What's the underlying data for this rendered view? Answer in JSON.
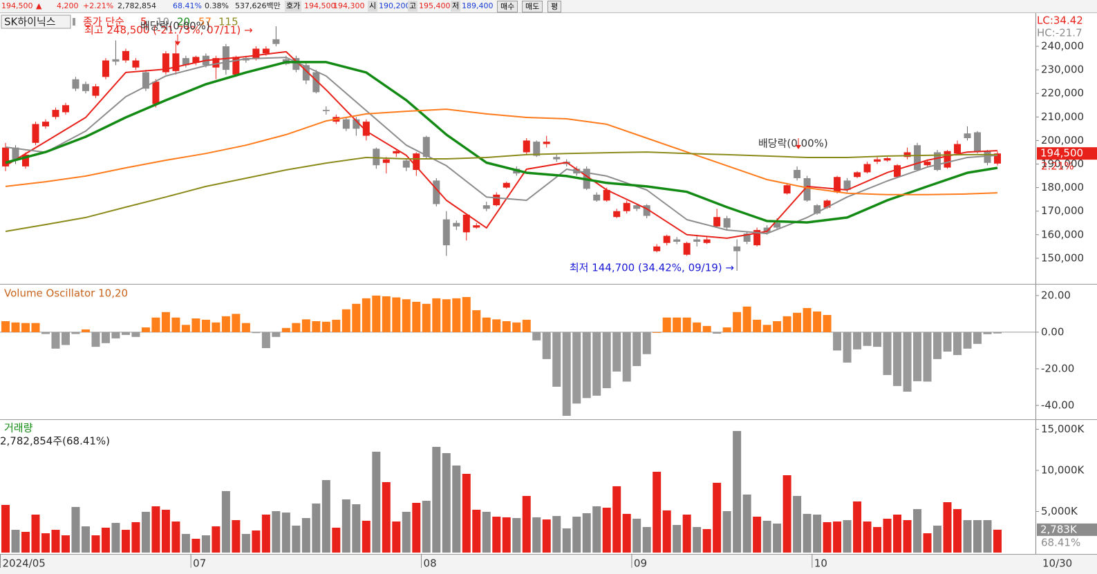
{
  "header": {
    "price": "194,500",
    "arrow": "▲",
    "change": "4,200",
    "change_pct": "+2.21%",
    "volume": "2,782,854",
    "volume_pct": "68.41%",
    "turnover": "0.38%",
    "amount": "537,626백만",
    "quote_label": "호가",
    "ask": "194,500",
    "bid": "194,300",
    "open_label": "시",
    "open": "190,200",
    "high_label": "고",
    "high": "195,400",
    "low_label": "저",
    "low": "189,400",
    "buttons": [
      "매수",
      "매도",
      "평"
    ]
  },
  "chart_data": [
    {
      "type": "candlestick",
      "title": "SK하이닉스",
      "subtitle": "종가 단순",
      "categories": [
        "2024/05",
        null,
        null,
        null,
        null,
        null,
        null,
        null,
        null,
        null,
        null,
        null,
        null,
        null,
        null,
        null,
        null,
        null,
        null,
        "07",
        null,
        null,
        null,
        null,
        null,
        null,
        null,
        null,
        null,
        null,
        null,
        null,
        null,
        null,
        null,
        null,
        null,
        null,
        null,
        null,
        null,
        null,
        "08",
        null,
        null,
        null,
        null,
        null,
        null,
        null,
        null,
        null,
        null,
        null,
        null,
        null,
        null,
        null,
        null,
        null,
        null,
        null,
        null,
        "09",
        null,
        null,
        null,
        null,
        null,
        null,
        null,
        null,
        null,
        null,
        null,
        null,
        null,
        null,
        null,
        null,
        null,
        "10",
        null,
        null,
        null,
        null,
        null,
        null,
        null,
        null,
        null,
        null,
        null,
        null,
        null,
        null,
        null,
        null,
        null,
        "10/30"
      ],
      "open": [
        189000,
        197000,
        189000,
        199000,
        206000,
        210000,
        212000,
        226000,
        224000,
        219000,
        227000,
        234500,
        234000,
        231000,
        229000,
        215500,
        229000,
        229500,
        235000,
        233000,
        236000,
        231000,
        240000,
        228000,
        235000,
        235000,
        237000,
        243000,
        234500,
        235000,
        232000,
        229000,
        213000,
        208000,
        209000,
        209000,
        202000,
        196500,
        190500,
        194500,
        191500,
        187500,
        201500,
        183000,
        166500,
        165000,
        161000,
        163000,
        172500,
        172500,
        180000,
        188000,
        195000,
        199500,
        198500,
        193000,
        191000,
        188000,
        188000,
        177000,
        174500,
        167500,
        170000,
        172500,
        172500,
        153000,
        156500,
        158000,
        151500,
        158000,
        156500,
        163500,
        167000,
        155000,
        160500,
        155500,
        163000,
        165000,
        177500,
        187500,
        184000,
        172500,
        171500,
        178000,
        183000,
        184500,
        186500,
        191000,
        191500,
        184500,
        193000,
        198000,
        189500,
        195000,
        188500,
        194500,
        203000,
        203500,
        195500,
        190200
      ],
      "high": [
        199000,
        198000,
        195000,
        208000,
        209000,
        214000,
        216000,
        227000,
        225000,
        224000,
        235000,
        242500,
        239000,
        235000,
        230000,
        226000,
        238000,
        242500,
        236000,
        236000,
        237000,
        236000,
        241000,
        236000,
        236000,
        240000,
        240000,
        248500,
        236000,
        236000,
        233000,
        230000,
        214500,
        211000,
        210000,
        210000,
        209000,
        197000,
        193000,
        196000,
        192000,
        195000,
        202000,
        184000,
        170000,
        166000,
        169000,
        165000,
        174000,
        178000,
        182500,
        189000,
        201000,
        200000,
        202000,
        194000,
        192000,
        189000,
        189000,
        178000,
        180000,
        171000,
        174500,
        173000,
        173000,
        156000,
        160000,
        159000,
        157000,
        160000,
        159000,
        171000,
        168000,
        158000,
        161000,
        163000,
        164000,
        167000,
        182000,
        189000,
        185000,
        173000,
        175000,
        185000,
        184000,
        187000,
        191000,
        193000,
        193000,
        190000,
        197000,
        199000,
        192000,
        196000,
        196000,
        200000,
        206000,
        204000,
        196000,
        195400
      ],
      "low": [
        187000,
        190000,
        188000,
        198000,
        205000,
        209000,
        211000,
        221000,
        220000,
        218000,
        226000,
        232000,
        233000,
        230000,
        221000,
        214000,
        228000,
        228000,
        231000,
        232000,
        231000,
        226000,
        228000,
        227000,
        233000,
        234000,
        236000,
        240000,
        232000,
        229000,
        224000,
        220000,
        211000,
        207000,
        204000,
        202000,
        200000,
        188000,
        186000,
        193000,
        187000,
        185000,
        192000,
        172000,
        151000,
        162000,
        157500,
        162500,
        170000,
        172000,
        179500,
        185000,
        194000,
        193000,
        197000,
        191000,
        189000,
        185000,
        179000,
        174000,
        174000,
        167000,
        169000,
        170000,
        167000,
        152500,
        155500,
        156000,
        151000,
        155000,
        156000,
        163000,
        162000,
        144700,
        156000,
        155000,
        160000,
        162000,
        177000,
        183000,
        174000,
        168500,
        171000,
        177500,
        178000,
        184000,
        186000,
        190000,
        191000,
        184000,
        192000,
        187000,
        189000,
        187000,
        188000,
        194000,
        200000,
        194500,
        189500,
        189400
      ],
      "close": [
        197000,
        192000,
        194000,
        207000,
        208000,
        213000,
        215000,
        222000,
        221000,
        223000,
        234000,
        233500,
        238000,
        234000,
        222000,
        225000,
        237000,
        237000,
        232000,
        235500,
        232000,
        235000,
        230000,
        235500,
        234000,
        239000,
        239000,
        241000,
        232500,
        230000,
        225500,
        220500,
        212500,
        210000,
        205000,
        205000,
        208000,
        189500,
        192000,
        195500,
        188500,
        194500,
        193000,
        173000,
        155500,
        163500,
        168500,
        164000,
        171000,
        177000,
        182000,
        186000,
        200000,
        193500,
        199500,
        192000,
        190000,
        186000,
        179500,
        174500,
        179000,
        170000,
        173500,
        171000,
        168000,
        155000,
        159500,
        157000,
        156500,
        157000,
        158000,
        167500,
        163000,
        153000,
        157000,
        162000,
        161000,
        163000,
        181000,
        184000,
        174500,
        169000,
        174500,
        184500,
        179000,
        186500,
        190000,
        192000,
        192500,
        189500,
        195000,
        187500,
        191000,
        187500,
        195500,
        198500,
        201000,
        195000,
        190500,
        194500
      ],
      "up_color": "#e8221a",
      "down_color": "#8c8c8c",
      "x": [
        0,
        4,
        8,
        12,
        16,
        20,
        24,
        28,
        32,
        36,
        40,
        44,
        48,
        52,
        56,
        60,
        64,
        68,
        72,
        76,
        80,
        84,
        88,
        92,
        96,
        99
      ],
      "series": [
        {
          "name": "5",
          "color": "#e8221a",
          "values": [
            189300,
            199500,
            209800,
            228900,
            230300,
            234000,
            235600,
            237700,
            221500,
            204000,
            193700,
            174600,
            162900,
            187800,
            190700,
            179000,
            171000,
            160000,
            158500,
            161400,
            180500,
            179000,
            186400,
            191600,
            195100,
            195700
          ]
        },
        {
          "name": "10",
          "color": "#8c8c8c",
          "values": [
            197200,
            195000,
            204000,
            218600,
            227400,
            231800,
            234700,
            235300,
            227400,
            212700,
            198000,
            189300,
            176000,
            174600,
            187800,
            184900,
            179000,
            166400,
            162000,
            160500,
            167300,
            176000,
            182800,
            188700,
            192800,
            193700
          ]
        },
        {
          "name": "20",
          "color": "#138a13",
          "values": [
            190600,
            195100,
            201600,
            209800,
            217100,
            223900,
            228900,
            233300,
            233300,
            228900,
            217100,
            202500,
            190600,
            186300,
            184900,
            182000,
            180500,
            178200,
            171700,
            165800,
            165200,
            167300,
            174600,
            180500,
            186300,
            188400
          ]
        },
        {
          "name": "57",
          "color": "#ff7a1a",
          "values": [
            180500,
            182500,
            184900,
            188400,
            191600,
            194500,
            198000,
            202500,
            208300,
            211300,
            212400,
            213300,
            211300,
            209800,
            209200,
            206900,
            201000,
            195100,
            189300,
            183400,
            179900,
            177600,
            177000,
            177000,
            177300,
            177800
          ]
        },
        {
          "name": "115",
          "color": "#8a8a1a",
          "values": [
            161400,
            164300,
            167300,
            171700,
            176000,
            180500,
            184000,
            187500,
            190400,
            192800,
            192200,
            192200,
            192800,
            194000,
            194500,
            194800,
            195100,
            194500,
            194000,
            193400,
            192800,
            192800,
            193400,
            193700,
            194000,
            194000
          ]
        }
      ],
      "ylim": [
        139400,
        253800
      ],
      "yticks": [
        {
          "value": 240000,
          "label": "240,000"
        },
        {
          "value": 230000,
          "label": "230,000"
        },
        {
          "value": 220000,
          "label": "220,000"
        },
        {
          "value": 210000,
          "label": "210,000"
        },
        {
          "value": 200000,
          "label": "200,000"
        },
        {
          "value": 190000,
          "label": "190,000"
        },
        {
          "value": 180000,
          "label": "180,000"
        },
        {
          "value": 170000,
          "label": "170,000"
        },
        {
          "value": 160000,
          "label": "160,000"
        },
        {
          "value": 150000,
          "label": "150,000"
        }
      ],
      "annotations": [
        {
          "text": "최고 248,500 (-21.73%, 07/11) →",
          "color": "#e8221a"
        },
        {
          "text": "배당락(0.00%)",
          "color": "#333333"
        },
        {
          "text": "배당락(0.00%)",
          "color": "#333333"
        },
        {
          "text": "최저 144,700 (34.42%, 09/19) →",
          "color": "#1a1ad6"
        }
      ],
      "axis_notes": [
        {
          "text": "LC:34.42",
          "color": "#e8221a"
        },
        {
          "text": "HC:-21.7",
          "color": "#8c8c8c"
        }
      ],
      "price_marker": "194,500",
      "change_marker": "2.21%"
    },
    {
      "type": "bar",
      "title": "Volume Oscillator 10,20",
      "title_color": "#c8641e",
      "values": [
        6,
        5.3,
        5,
        5,
        -1,
        -9,
        -7,
        -1,
        1.5,
        -8,
        -6,
        -3.4,
        -1.5,
        -2.6,
        2.6,
        8,
        11,
        8,
        4,
        7.5,
        6.8,
        5.3,
        8.7,
        10,
        5,
        -0.5,
        -8.7,
        -2.6,
        2.3,
        5,
        7,
        6,
        5.7,
        6.8,
        12.5,
        15.5,
        18.5,
        20,
        19.6,
        19,
        18,
        16.6,
        15.5,
        18.5,
        18,
        18.5,
        19.2,
        12,
        8,
        7,
        6,
        5.3,
        6.8,
        -4.5,
        -14.7,
        -29.8,
        -45.7,
        -39,
        -36,
        -34.7,
        -30.6,
        -21.5,
        -27,
        -18.5,
        -12,
        0,
        8,
        8,
        8,
        5.3,
        3.4,
        -0.8,
        2.6,
        11,
        14,
        6.8,
        4,
        6,
        8.7,
        10.6,
        13.2,
        11.3,
        9.4,
        -10,
        -16.6,
        -9.4,
        -7.5,
        -8,
        -23.4,
        -29.4,
        -32.5,
        -26.8,
        -27,
        -14.7,
        -10.6,
        -12.5,
        -9,
        -6.4,
        -1.1,
        -0.7
      ],
      "pos_color": "#ff7f1a",
      "neg_color": "#999999",
      "ylim": [
        -47.2,
        26
      ],
      "yticks": [
        {
          "value": 20,
          "label": "20.00"
        },
        {
          "value": 0,
          "label": "0.00"
        },
        {
          "value": -20,
          "label": "-20.00"
        },
        {
          "value": -40,
          "label": "-40.00"
        }
      ]
    },
    {
      "type": "volume",
      "title": "거래량",
      "title_color": "#138a13",
      "subtitle": "2,782,854주(68.41%)",
      "values": [
        5800,
        2770,
        2520,
        4620,
        2350,
        2770,
        2100,
        5550,
        3190,
        2100,
        3030,
        3610,
        2770,
        3700,
        4960,
        5630,
        5210,
        3780,
        2270,
        1680,
        2100,
        3190,
        7480,
        3950,
        2270,
        2690,
        4620,
        5040,
        4870,
        3280,
        4200,
        5970,
        8820,
        3030,
        6470,
        5880,
        3870,
        12270,
        8570,
        3780,
        4960,
        6050,
        6300,
        12860,
        12100,
        10590,
        9580,
        5210,
        4960,
        4370,
        4290,
        4200,
        6890,
        4290,
        4030,
        4450,
        2940,
        4370,
        4790,
        5630,
        5460,
        8070,
        4710,
        4120,
        3110,
        9830,
        5130,
        3360,
        4620,
        3110,
        2860,
        8490,
        5040,
        14790,
        7060,
        4370,
        3870,
        3530,
        9410,
        6890,
        4710,
        4620,
        3700,
        3780,
        3950,
        6220,
        3780,
        3110,
        4120,
        4620,
        3950,
        5290,
        2350,
        3280,
        6130,
        5290,
        3950,
        3950,
        3950,
        2783
      ],
      "ylim": [
        0,
        16130
      ],
      "yticks": [
        {
          "value": 15000,
          "label": "15,000K"
        },
        {
          "value": 10000,
          "label": "10,000K"
        },
        {
          "value": 5000,
          "label": "5,000K"
        }
      ],
      "volume_marker": "2,783K",
      "ratio_marker": "68.41%"
    }
  ]
}
